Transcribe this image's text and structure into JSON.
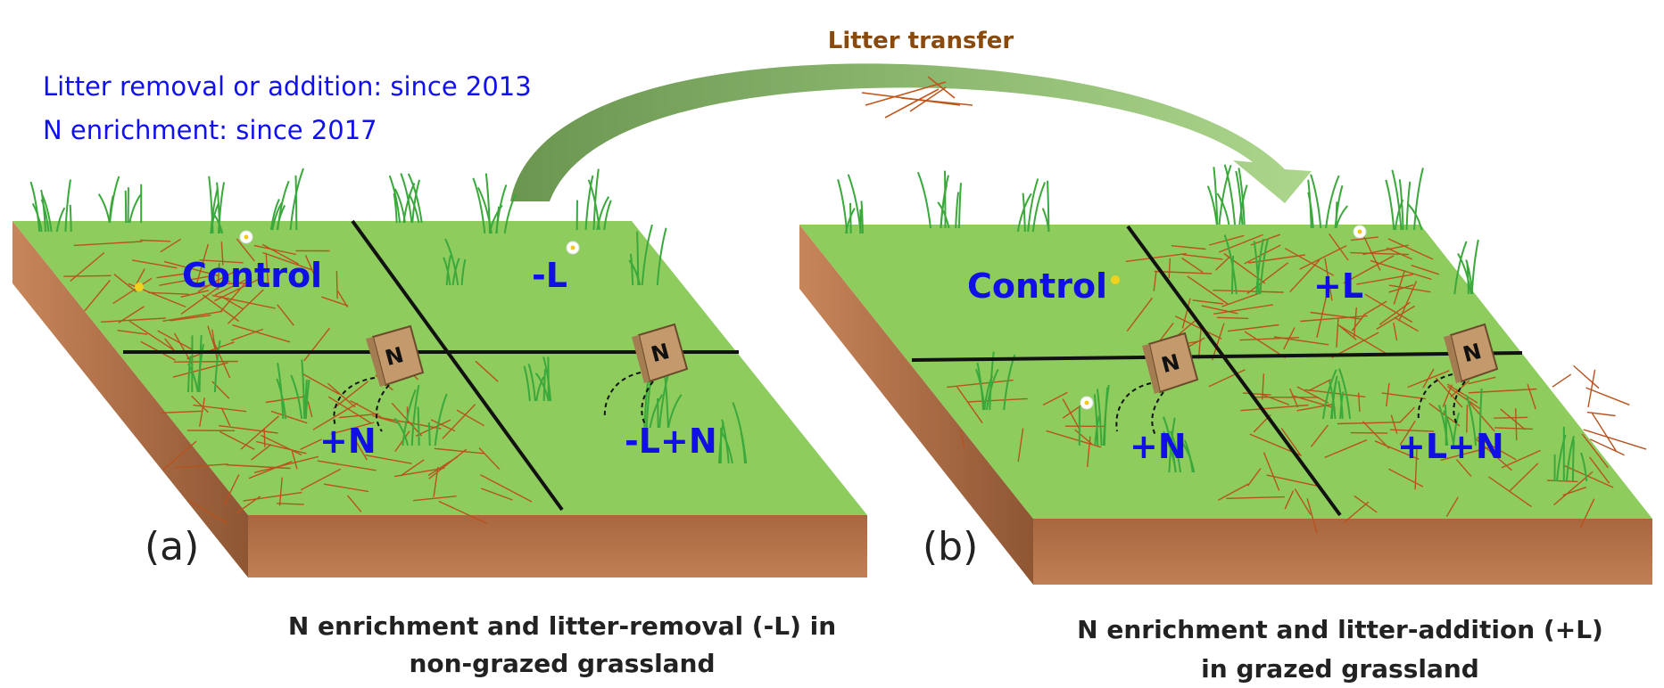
{
  "notes": {
    "line1": "Litter removal or addition: since 2013",
    "line2": "N enrichment: since 2017"
  },
  "transfer_label": "Litter transfer",
  "panel_a": {
    "letter": "(a)",
    "plots": {
      "control": "Control",
      "minus_l": "-L",
      "plus_n": "+N",
      "minus_l_plus_n": "-L+N"
    },
    "caption_line1": "N enrichment and litter-removal (-L) in",
    "caption_line2": "non-grazed grassland"
  },
  "panel_b": {
    "letter": "(b)",
    "plots": {
      "control": "Control",
      "plus_l": "+L",
      "plus_n": "+N",
      "plus_l_plus_n": "+L+N"
    },
    "caption_line1": "N enrichment and litter-addition (+L)",
    "caption_line2": "in grazed grassland"
  },
  "fertilizer_bag_label": "N",
  "colors": {
    "grass_top": "#8fcc5e",
    "soil_front": "#b5764c",
    "soil_side": "#9a5f3a",
    "litter": "#b8521e",
    "grass_blade": "#3aa83a",
    "arrow_start": "#6e9a4e",
    "arrow_end": "#a9d38a",
    "label_blue": "#1010e6",
    "bag": "#c49a6c"
  }
}
